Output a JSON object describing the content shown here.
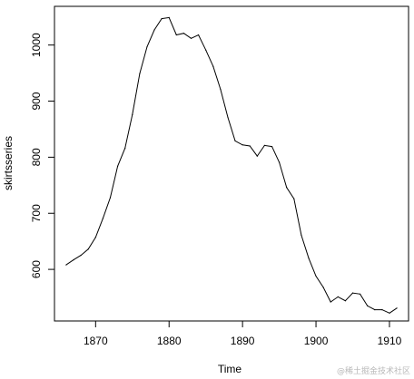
{
  "watermark": "@稀土掘金技术社区",
  "chart_data": {
    "type": "line",
    "xlabel": "Time",
    "ylabel": "skirtsseries",
    "xlim": [
      1864.4,
      1912.6
    ],
    "ylim": [
      508,
      1069
    ],
    "x_ticks": [
      1870,
      1880,
      1890,
      1900,
      1910
    ],
    "y_ticks": [
      600,
      700,
      800,
      900,
      1000
    ],
    "line_color": "#000000",
    "grid": false,
    "series": [
      {
        "x": [
          1866,
          1867,
          1868,
          1869,
          1870,
          1871,
          1872,
          1873,
          1874,
          1875,
          1876,
          1877,
          1878,
          1879,
          1880,
          1881,
          1882,
          1883,
          1884,
          1885,
          1886,
          1887,
          1888,
          1889,
          1890,
          1891,
          1892,
          1893,
          1894,
          1895,
          1896,
          1897,
          1898,
          1899,
          1900,
          1901,
          1902,
          1903,
          1904,
          1905,
          1906,
          1907,
          1908,
          1909,
          1910,
          1911
        ],
        "values": [
          608,
          617,
          625,
          636,
          657,
          691,
          728,
          784,
          816,
          876,
          949,
          997,
          1027,
          1047,
          1049,
          1018,
          1021,
          1012,
          1018,
          991,
          962,
          921,
          871,
          829,
          822,
          820,
          802,
          821,
          819,
          791,
          746,
          726,
          661,
          620,
          588,
          568,
          542,
          551,
          544,
          558,
          556,
          535,
          528,
          528,
          522,
          531
        ]
      }
    ]
  }
}
